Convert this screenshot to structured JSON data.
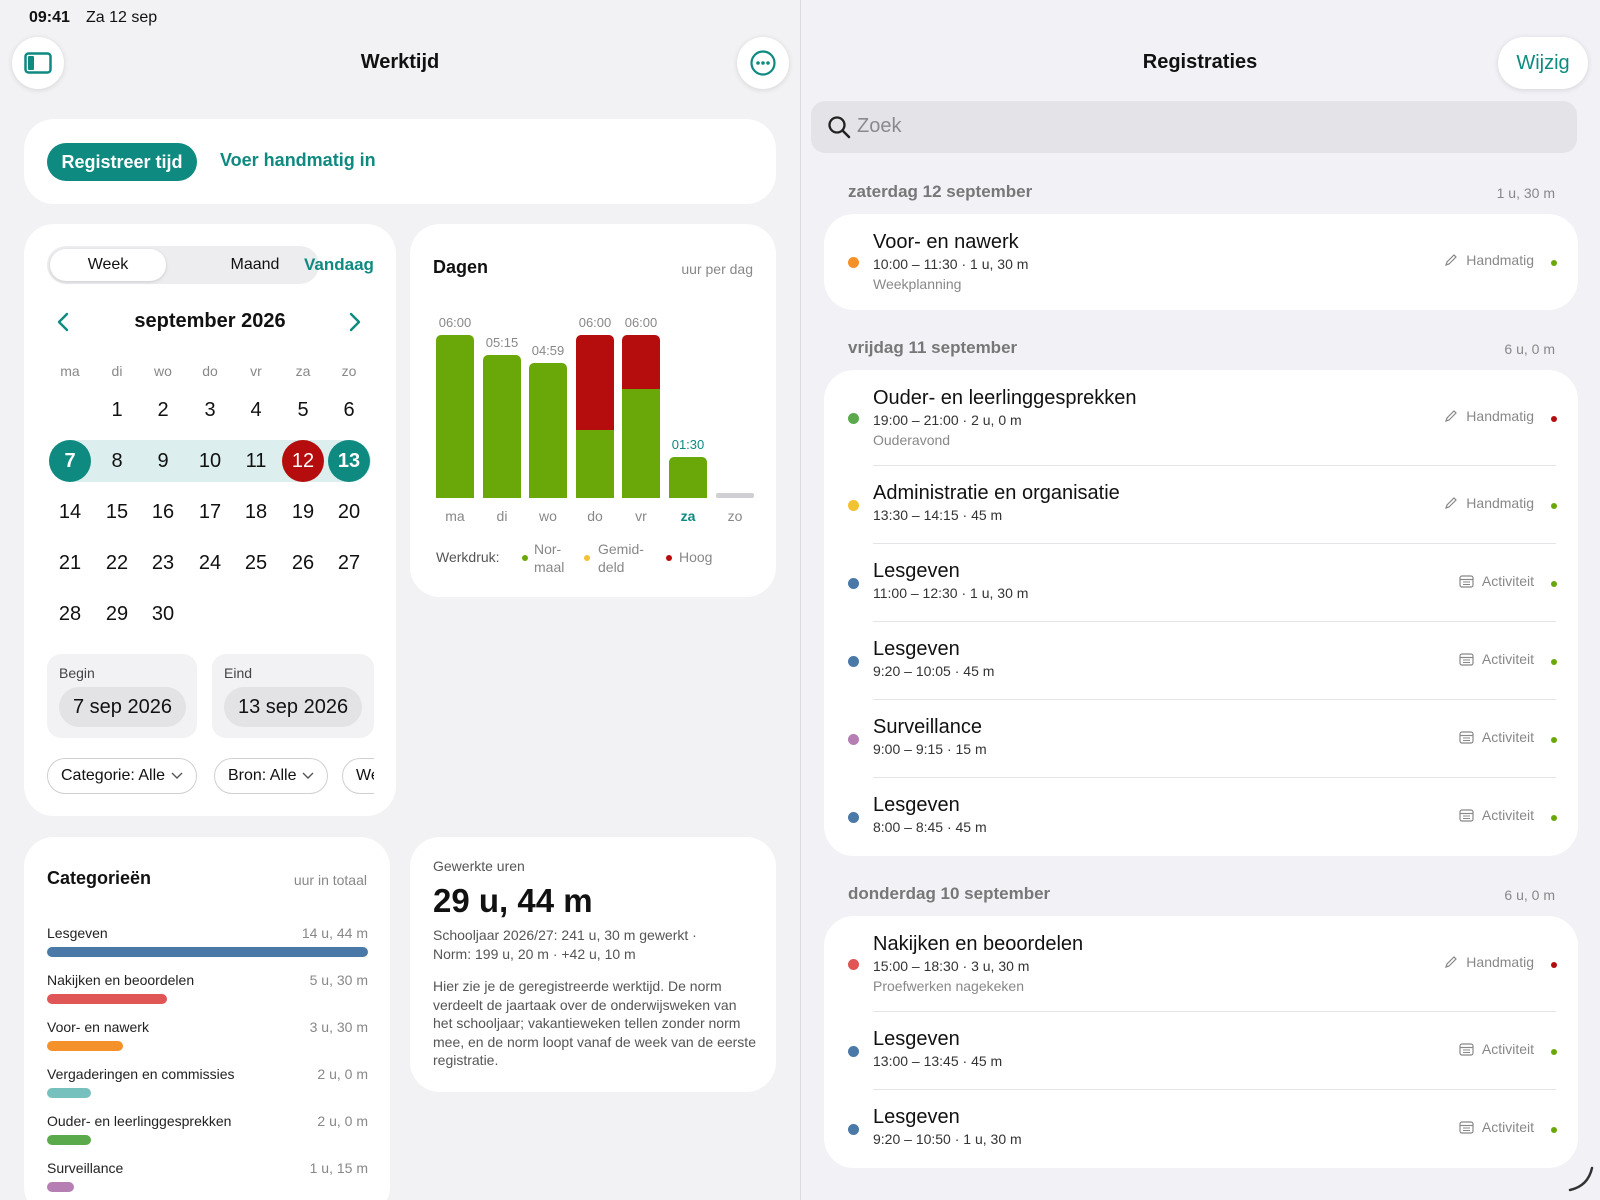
{
  "status": {
    "time": "09:41",
    "date": "Za 12 sep"
  },
  "colors": {
    "accent": "#0e8a80",
    "normaal": "#6aa80a",
    "gemiddeld": "#f1c232",
    "hoog": "#b50d0d",
    "neutral": "#cfcfd4"
  },
  "left": {
    "title": "Werktijd",
    "sidebar_icon": "sidebar-icon",
    "more_icon": "ellipsis-icon",
    "register_button": "Registreer tijd",
    "manual_link": "Voer handmatig in"
  },
  "calendar": {
    "seg_week": "Week",
    "seg_month": "Maand",
    "today": "Vandaag",
    "month_title": "september 2026",
    "dows": [
      "ma",
      "di",
      "wo",
      "do",
      "vr",
      "za",
      "zo"
    ],
    "weeks": [
      [
        "",
        "1",
        "2",
        "3",
        "4",
        "5",
        "6"
      ],
      [
        "7",
        "8",
        "9",
        "10",
        "11",
        "12",
        "13"
      ],
      [
        "14",
        "15",
        "16",
        "17",
        "18",
        "19",
        "20"
      ],
      [
        "21",
        "22",
        "23",
        "24",
        "25",
        "26",
        "27"
      ],
      [
        "28",
        "29",
        "30",
        "",
        "",
        "",
        ""
      ]
    ],
    "selected_start": "7",
    "selected_end": "13",
    "today_day": "12",
    "begin_label": "Begin",
    "begin_value": "7 sep 2026",
    "end_label": "Eind",
    "end_value": "13 sep 2026",
    "chips": [
      "Categorie: Alle",
      "Bron: Alle",
      "We"
    ]
  },
  "chart_data": {
    "type": "bar",
    "title": "Dagen",
    "subtitle": "uur per dag",
    "categories": [
      "ma",
      "di",
      "wo",
      "do",
      "vr",
      "za",
      "zo"
    ],
    "labels": [
      "06:00",
      "05:15",
      "04:59",
      "06:00",
      "06:00",
      "01:30",
      ""
    ],
    "series": [
      {
        "level": "normaal",
        "values": [
          6.0,
          5.25,
          4.98,
          2.5,
          4.0,
          1.5,
          0
        ]
      },
      {
        "level": "hoog",
        "values": [
          0,
          0,
          0,
          3.5,
          2.0,
          0,
          0
        ]
      }
    ],
    "ylim": [
      0,
      6
    ],
    "highlight_category": "za",
    "legend_title": "Werkdruk:",
    "legend": [
      "Nor-\nmaal",
      "Gemid-\ndeld",
      "Hoog"
    ]
  },
  "categories_card": {
    "title": "Categorieën",
    "subtitle": "uur in totaal",
    "items": [
      {
        "name": "Lesgeven",
        "value": "14 u, 44 m",
        "fraction": 1.0,
        "color": "#4a79a8"
      },
      {
        "name": "Nakijken en beoordelen",
        "value": "5 u, 30 m",
        "fraction": 0.373,
        "color": "#e05555"
      },
      {
        "name": "Voor- en nawerk",
        "value": "3 u, 30 m",
        "fraction": 0.237,
        "color": "#f5912a"
      },
      {
        "name": "Vergaderingen en commissies",
        "value": "2 u, 0 m",
        "fraction": 0.136,
        "color": "#76c0be"
      },
      {
        "name": "Ouder- en leerlinggesprekken",
        "value": "2 u, 0 m",
        "fraction": 0.136,
        "color": "#5aaa4c"
      },
      {
        "name": "Surveillance",
        "value": "1 u, 15 m",
        "fraction": 0.085,
        "color": "#b57fb3"
      }
    ]
  },
  "worked": {
    "label": "Gewerkte uren",
    "value": "29 u, 44 m",
    "line1": "Schooljaar 2026/27: 241 u, 30 m gewerkt ·",
    "line2": "Norm: 199 u, 20 m · +42 u, 10 m",
    "description": "Hier zie je de geregistreerde werktijd. De norm verdeelt de jaartaak over de onderwijsweken van het schooljaar; vakantieweken tellen zonder norm mee, en de norm loopt vanaf de week van de eerste registratie."
  },
  "right": {
    "title": "Registraties",
    "edit_button": "Wijzig",
    "search_placeholder": "Zoek",
    "sections": [
      {
        "header": "zaterdag 12 september",
        "total": "1 u, 30 m",
        "entries": [
          {
            "title": "Voor- en nawerk",
            "time": "10:00 – 11:30 · 1 u, 30 m",
            "note": "Weekplanning",
            "source": "Handmatig",
            "source_icon": "pencil-icon",
            "cat_color": "#f5912a",
            "level_color": "#6aa80a"
          }
        ]
      },
      {
        "header": "vrijdag 11 september",
        "total": "6 u, 0 m",
        "entries": [
          {
            "title": "Ouder- en leerlinggesprekken",
            "time": "19:00 – 21:00 · 2 u, 0 m",
            "note": "Ouderavond",
            "source": "Handmatig",
            "source_icon": "pencil-icon",
            "cat_color": "#5aaa4c",
            "level_color": "#b50d0d"
          },
          {
            "title": "Administratie en organisatie",
            "time": "13:30 – 14:15 · 45 m",
            "note": "",
            "source": "Handmatig",
            "source_icon": "pencil-icon",
            "cat_color": "#f1c232",
            "level_color": "#6aa80a"
          },
          {
            "title": "Lesgeven",
            "time": "11:00 – 12:30 · 1 u, 30 m",
            "note": "",
            "source": "Activiteit",
            "source_icon": "calendar-icon",
            "cat_color": "#4a79a8",
            "level_color": "#6aa80a"
          },
          {
            "title": "Lesgeven",
            "time": "9:20 – 10:05 · 45 m",
            "note": "",
            "source": "Activiteit",
            "source_icon": "calendar-icon",
            "cat_color": "#4a79a8",
            "level_color": "#6aa80a"
          },
          {
            "title": "Surveillance",
            "time": "9:00 – 9:15 · 15 m",
            "note": "",
            "source": "Activiteit",
            "source_icon": "calendar-icon",
            "cat_color": "#b57fb3",
            "level_color": "#6aa80a"
          },
          {
            "title": "Lesgeven",
            "time": "8:00 – 8:45 · 45 m",
            "note": "",
            "source": "Activiteit",
            "source_icon": "calendar-icon",
            "cat_color": "#4a79a8",
            "level_color": "#6aa80a"
          }
        ]
      },
      {
        "header": "donderdag 10 september",
        "total": "6 u, 0 m",
        "entries": [
          {
            "title": "Nakijken en beoordelen",
            "time": "15:00 – 18:30 · 3 u, 30 m",
            "note": "Proefwerken nagekeken",
            "source": "Handmatig",
            "source_icon": "pencil-icon",
            "cat_color": "#e05555",
            "level_color": "#b50d0d"
          },
          {
            "title": "Lesgeven",
            "time": "13:00 – 13:45 · 45 m",
            "note": "",
            "source": "Activiteit",
            "source_icon": "calendar-icon",
            "cat_color": "#4a79a8",
            "level_color": "#6aa80a"
          },
          {
            "title": "Lesgeven",
            "time": "9:20 – 10:50 · 1 u, 30 m",
            "note": "",
            "source": "Activiteit",
            "source_icon": "calendar-icon",
            "cat_color": "#4a79a8",
            "level_color": "#6aa80a"
          }
        ]
      }
    ]
  }
}
